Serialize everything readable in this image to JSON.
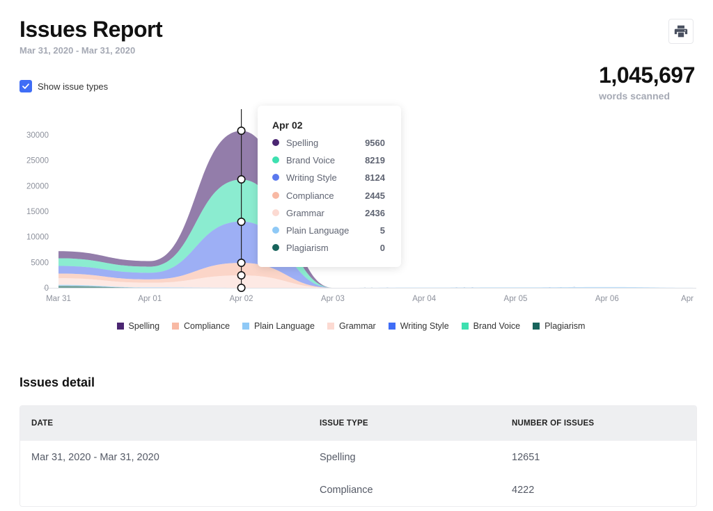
{
  "header": {
    "title": "Issues Report",
    "date_range": "Mar 31, 2020 - Mar 31, 2020",
    "print_icon": "printer-icon",
    "words_count": "1,045,697",
    "words_label": "words scanned"
  },
  "controls": {
    "show_issue_types_label": "Show issue types",
    "show_issue_types_checked": true
  },
  "tooltip": {
    "title": "Apr 02",
    "rows": [
      {
        "name": "Spelling",
        "value": "9560",
        "color": "#4b2672"
      },
      {
        "name": "Brand Voice",
        "value": "8219",
        "color": "#3ee0b0"
      },
      {
        "name": "Writing Style",
        "value": "8124",
        "color": "#5b79ee"
      },
      {
        "name": "Compliance",
        "value": "2445",
        "color": "#f8b9a4"
      },
      {
        "name": "Grammar",
        "value": "2436",
        "color": "#fcdad2"
      },
      {
        "name": "Plain Language",
        "value": "5",
        "color": "#8fc9f6"
      },
      {
        "name": "Plagiarism",
        "value": "0",
        "color": "#18645c"
      }
    ]
  },
  "chart_data": {
    "type": "area",
    "stacked": true,
    "x": [
      "Mar 31",
      "Apr 01",
      "Apr 02",
      "Apr 03",
      "Apr 04",
      "Apr 05",
      "Apr 06",
      "Apr"
    ],
    "y_ticks": [
      "0",
      "5000",
      "10000",
      "15000",
      "20000",
      "25000",
      "30000"
    ],
    "ylim": [
      0,
      33000
    ],
    "series": [
      {
        "name": "Plagiarism",
        "color": "#18645c",
        "values": [
          400,
          0,
          0,
          0,
          0,
          0,
          0,
          0
        ]
      },
      {
        "name": "Plain Language",
        "color": "#8fc9f6",
        "values": [
          200,
          100,
          5,
          0,
          50,
          80,
          150,
          0
        ]
      },
      {
        "name": "Grammar",
        "color": "#fcdad2",
        "values": [
          1300,
          900,
          2436,
          0,
          0,
          0,
          0,
          0
        ]
      },
      {
        "name": "Compliance",
        "color": "#f8b9a4",
        "values": [
          900,
          650,
          2445,
          0,
          0,
          0,
          0,
          0
        ]
      },
      {
        "name": "Writing Style",
        "color": "#5b79ee",
        "values": [
          1500,
          1300,
          8124,
          0,
          0,
          0,
          0,
          0
        ]
      },
      {
        "name": "Brand Voice",
        "color": "#3ee0b0",
        "values": [
          1500,
          1200,
          8219,
          0,
          0,
          0,
          0,
          0
        ]
      },
      {
        "name": "Spelling",
        "color": "#4b2672",
        "values": [
          1400,
          1100,
          9560,
          0,
          0,
          0,
          0,
          0
        ]
      }
    ],
    "legend": [
      {
        "name": "Spelling",
        "color": "#4b2672"
      },
      {
        "name": "Compliance",
        "color": "#f8b9a4"
      },
      {
        "name": "Plain Language",
        "color": "#8fc9f6"
      },
      {
        "name": "Grammar",
        "color": "#fcdad2"
      },
      {
        "name": "Writing Style",
        "color": "#3f6df6"
      },
      {
        "name": "Brand Voice",
        "color": "#3ee0b0"
      },
      {
        "name": "Plagiarism",
        "color": "#18645c"
      }
    ],
    "legend_placement": "bottom",
    "grid": false,
    "hover_category": "Apr 02"
  },
  "details": {
    "title": "Issues detail",
    "columns": [
      "DATE",
      "ISSUE TYPE",
      "NUMBER OF ISSUES"
    ],
    "rows": [
      {
        "date": "Mar 31, 2020 - Mar 31, 2020",
        "type": "Spelling",
        "count": "12651"
      },
      {
        "date": "",
        "type": "Compliance",
        "count": "4222"
      }
    ]
  }
}
